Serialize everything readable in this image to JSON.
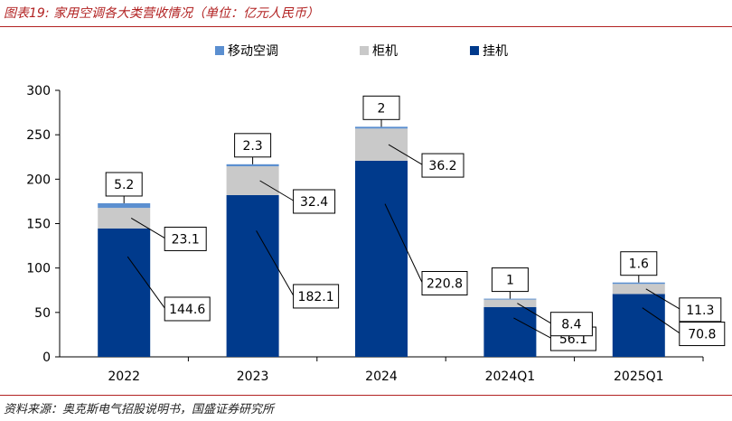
{
  "header": {
    "title": "图表19:  家用空调各大类营收情况（单位：亿元人民币）"
  },
  "footer": {
    "source": "资料来源：奥克斯电气招股说明书，国盛证券研究所"
  },
  "chart_data": {
    "type": "bar",
    "stacked": true,
    "categories": [
      "2022",
      "2023",
      "2024",
      "2024Q1",
      "2025Q1"
    ],
    "series": [
      {
        "name": "挂机",
        "color": "#003a8c",
        "values": [
          144.6,
          182.1,
          220.8,
          56.1,
          70.8
        ]
      },
      {
        "name": "柜机",
        "color": "#c9c9c9",
        "values": [
          23.1,
          32.4,
          36.2,
          8.4,
          11.3
        ]
      },
      {
        "name": "移动空调",
        "color": "#5b8fd0",
        "values": [
          5.2,
          2.3,
          2.0,
          1.0,
          1.6
        ]
      }
    ],
    "legend_order": [
      "移动空调",
      "柜机",
      "挂机"
    ],
    "legend_position": "top",
    "ylim": [
      0,
      300
    ],
    "yticks": [
      0,
      50,
      100,
      150,
      200,
      250,
      300
    ],
    "grid": false,
    "data_labels": "callouts"
  }
}
